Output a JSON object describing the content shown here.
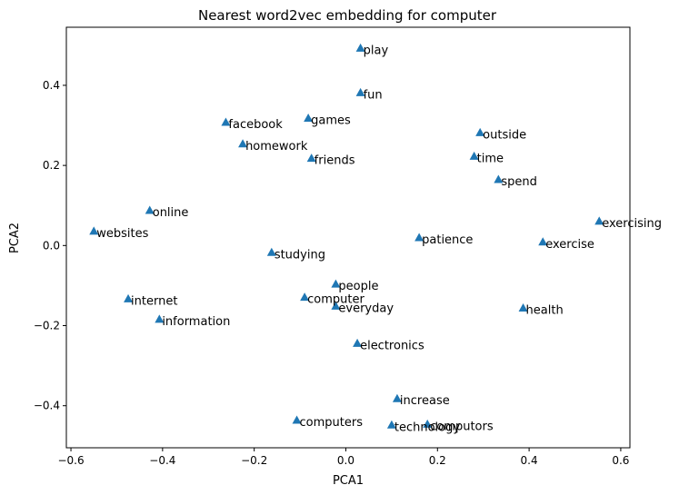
{
  "chart_data": {
    "type": "scatter",
    "title": "Nearest word2vec embedding for computer",
    "xlabel": "PCA1",
    "ylabel": "PCA2",
    "xlim": [
      -0.61,
      0.62
    ],
    "ylim": [
      -0.505,
      0.545
    ],
    "xticks": [
      -0.6,
      -0.4,
      -0.2,
      0.0,
      0.2,
      0.4,
      0.6
    ],
    "xtick_labels": [
      "−0.6",
      "−0.4",
      "−0.2",
      "0.0",
      "0.2",
      "0.4",
      "0.6"
    ],
    "yticks": [
      -0.4,
      -0.2,
      0.0,
      0.2,
      0.4
    ],
    "ytick_labels": [
      "−0.4",
      "−0.2",
      "0.0",
      "0.2",
      "0.4"
    ],
    "grid": false,
    "marker": "triangle",
    "marker_color": "#1f77b4",
    "points": [
      {
        "label": "play",
        "x": 0.032,
        "y": 0.492
      },
      {
        "label": "fun",
        "x": 0.032,
        "y": 0.381
      },
      {
        "label": "facebook",
        "x": -0.262,
        "y": 0.307
      },
      {
        "label": "games",
        "x": -0.082,
        "y": 0.317
      },
      {
        "label": "homework",
        "x": -0.225,
        "y": 0.253
      },
      {
        "label": "friends",
        "x": -0.075,
        "y": 0.217
      },
      {
        "label": "outside",
        "x": 0.293,
        "y": 0.281
      },
      {
        "label": "time",
        "x": 0.28,
        "y": 0.222
      },
      {
        "label": "spend",
        "x": 0.333,
        "y": 0.164
      },
      {
        "label": "online",
        "x": -0.428,
        "y": 0.087
      },
      {
        "label": "websites",
        "x": -0.55,
        "y": 0.035
      },
      {
        "label": "exercising",
        "x": 0.553,
        "y": 0.06
      },
      {
        "label": "exercise",
        "x": 0.43,
        "y": 0.008
      },
      {
        "label": "patience",
        "x": 0.16,
        "y": 0.019
      },
      {
        "label": "studying",
        "x": -0.162,
        "y": -0.018
      },
      {
        "label": "people",
        "x": -0.022,
        "y": -0.097
      },
      {
        "label": "computer",
        "x": -0.09,
        "y": -0.13
      },
      {
        "label": "everyday",
        "x": -0.022,
        "y": -0.152
      },
      {
        "label": "internet",
        "x": -0.475,
        "y": -0.134
      },
      {
        "label": "information",
        "x": -0.407,
        "y": -0.185
      },
      {
        "label": "health",
        "x": 0.387,
        "y": -0.157
      },
      {
        "label": "electronics",
        "x": 0.025,
        "y": -0.245
      },
      {
        "label": "increase",
        "x": 0.112,
        "y": -0.383
      },
      {
        "label": "computers",
        "x": -0.107,
        "y": -0.437
      },
      {
        "label": "technology",
        "x": 0.1,
        "y": -0.449
      },
      {
        "label": "computors",
        "x": 0.178,
        "y": -0.447
      }
    ]
  }
}
